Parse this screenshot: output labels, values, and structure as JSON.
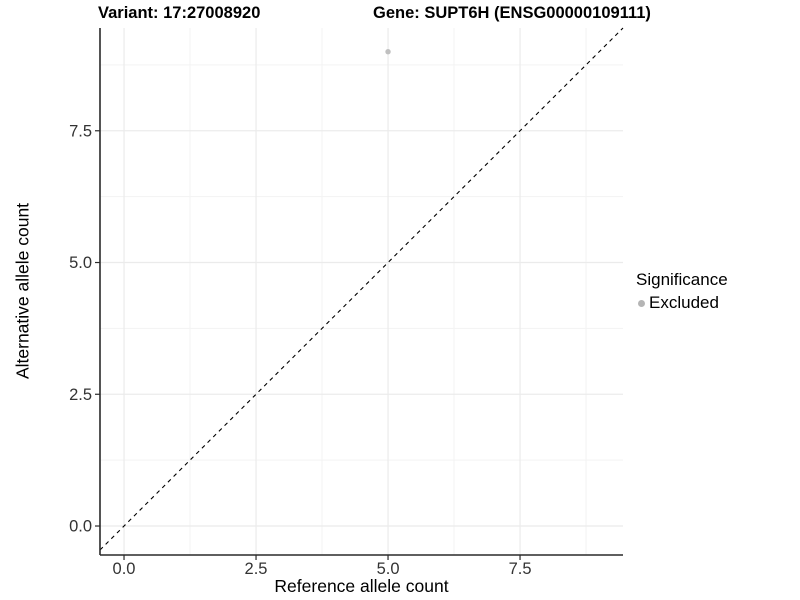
{
  "header": {
    "variant_title": "Variant: 17:27008920",
    "gene_title": "Gene: SUPT6H (ENSG00000109111)"
  },
  "chart_data": {
    "type": "scatter",
    "xlabel": "Reference allele count",
    "ylabel": "Alternative allele count",
    "xlim": [
      -0.455,
      9.45
    ],
    "ylim": [
      -0.55,
      9.45
    ],
    "x_ticks": {
      "values": [
        0,
        2.5,
        5,
        7.5
      ],
      "labels": [
        "0.0",
        "2.5",
        "5.0",
        "7.5"
      ]
    },
    "y_ticks": {
      "values": [
        0,
        2.5,
        5,
        7.5
      ],
      "labels": [
        "0.0",
        "2.5",
        "5.0",
        "7.5"
      ]
    },
    "minor_ticks": [
      1.25,
      3.75,
      6.25,
      8.75
    ],
    "grid": true,
    "points": [
      {
        "x": 5,
        "y": 9,
        "series": "Excluded",
        "color": "#c0c0c0"
      }
    ],
    "reference_line": {
      "slope": 1,
      "intercept": 0,
      "style": "dashed",
      "color": "#000000"
    },
    "legend": {
      "title": "Significance",
      "position": "right",
      "items": [
        {
          "label": "Excluded",
          "color": "#b5b5b5"
        }
      ]
    }
  }
}
